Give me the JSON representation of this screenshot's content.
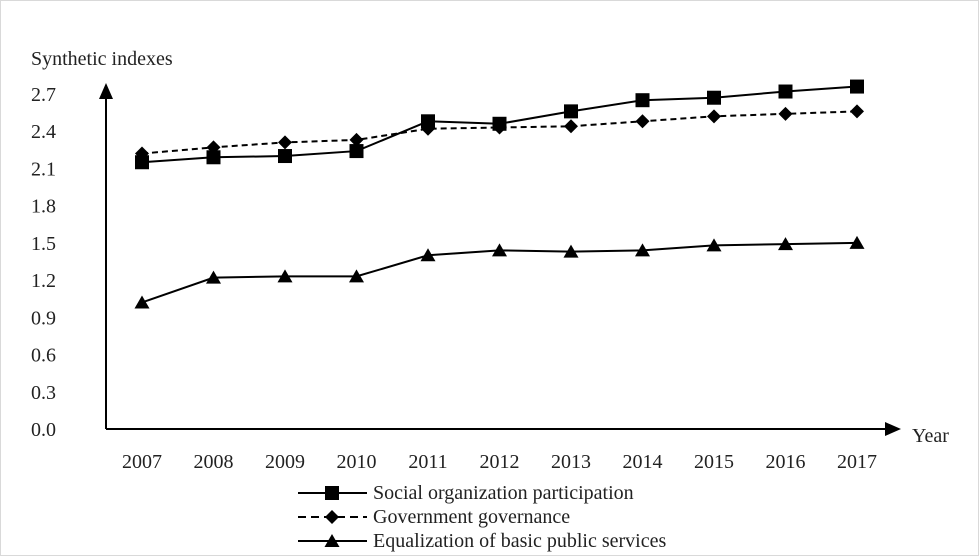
{
  "chart_data": {
    "type": "line",
    "title": "",
    "ylabel": "Synthetic indexes",
    "xlabel": "Year",
    "categories": [
      "2007",
      "2008",
      "2009",
      "2010",
      "2011",
      "2012",
      "2013",
      "2014",
      "2015",
      "2016",
      "2017"
    ],
    "ylim": [
      0,
      2.7
    ],
    "yticks": [
      "0.0",
      "0.3",
      "0.6",
      "0.9",
      "1.2",
      "1.5",
      "1.8",
      "2.1",
      "2.4",
      "2.7"
    ],
    "grid": false,
    "legend_position": "bottom",
    "series": [
      {
        "name": "Social organization participation",
        "marker": "square",
        "line": "solid",
        "color": "#000000",
        "values": [
          2.15,
          2.19,
          2.2,
          2.24,
          2.48,
          2.46,
          2.56,
          2.65,
          2.67,
          2.72,
          2.76
        ]
      },
      {
        "name": "Government governance",
        "marker": "diamond",
        "line": "dashed",
        "color": "#000000",
        "values": [
          2.22,
          2.27,
          2.31,
          2.33,
          2.42,
          2.43,
          2.44,
          2.48,
          2.52,
          2.54,
          2.56
        ]
      },
      {
        "name": "Equalization of basic public services",
        "marker": "triangle",
        "line": "solid",
        "color": "#000000",
        "values": [
          1.02,
          1.22,
          1.23,
          1.23,
          1.4,
          1.44,
          1.43,
          1.44,
          1.48,
          1.49,
          1.5
        ]
      }
    ]
  }
}
